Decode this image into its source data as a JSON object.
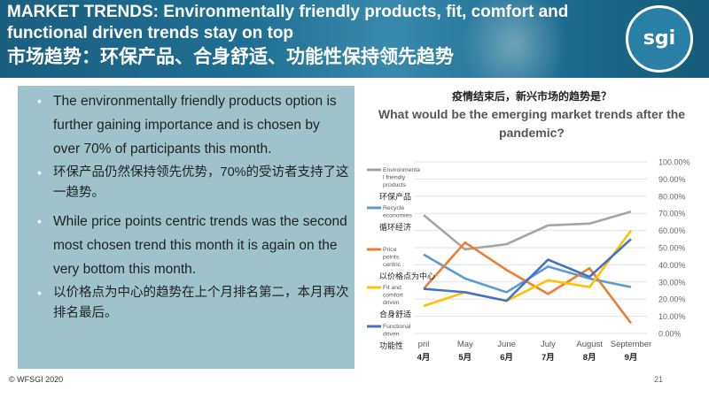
{
  "header": {
    "title_en": "MARKET TRENDS: Environmentally friendly products, fit, comfort and functional driven trends stay on top",
    "title_cn": "市场趋势：环保产品、合身舒适、功能性保持领先趋势",
    "logo_text": "sgi"
  },
  "bullets": [
    {
      "text": "The environmentally friendly products option is further gaining importance and is chosen by over 70% of participants this month.",
      "lang": "en"
    },
    {
      "text": "环保产品仍然保持领先优势，70%的受访者支持了这一趋势。",
      "lang": "cn"
    },
    {
      "text": "While price points centric trends was the second most chosen trend this month it is again on the very bottom this month.",
      "lang": "en"
    },
    {
      "text": "以价格点为中心的趋势在上个月排名第二，本月再次排名最后。",
      "lang": "cn"
    }
  ],
  "footer": {
    "copyright": "© WFSGI 2020",
    "page": "21"
  },
  "chart_data": {
    "type": "line",
    "title_cn": "疫情结束后，新兴市场的趋势是？",
    "title_en": "What would be the emerging market trends after the pandemic?",
    "categories": [
      "April",
      "May",
      "June",
      "July",
      "August",
      "September"
    ],
    "categories_cn": [
      "4月",
      "5月",
      "6月",
      "7月",
      "8月",
      "9月"
    ],
    "category_labels_shown": [
      "pril",
      "May",
      "June",
      "July",
      "August",
      "September"
    ],
    "ylim": [
      0,
      100
    ],
    "yticks": [
      "0.00%",
      "10.00%",
      "20.00%",
      "30.00%",
      "40.00%",
      "50.00%",
      "60.00%",
      "70.00%",
      "80.00%",
      "90.00%",
      "100.00%"
    ],
    "legend_position": "left",
    "series": [
      {
        "name": "Environmenta l friendly products",
        "name_cn": "环保产品",
        "color": "#a5a5a5",
        "values": [
          69,
          49,
          52,
          63,
          64,
          71
        ]
      },
      {
        "name": "Recycle economies",
        "name_cn": "循环经济",
        "color": "#5b9bd5",
        "values": [
          46,
          32,
          24,
          39,
          32,
          27
        ]
      },
      {
        "name": "Price points centric",
        "name_cn": "以价格点为中心",
        "color": "#ed7d31",
        "values": [
          26,
          53,
          37,
          23,
          38,
          6
        ]
      },
      {
        "name": "Fit and comfort driven",
        "name_cn": "合身舒适",
        "color": "#ffc000",
        "values": [
          16,
          24,
          19,
          31,
          27,
          60
        ]
      },
      {
        "name": "Functional driven",
        "name_cn": "功能性",
        "color": "#4472c4",
        "values": [
          26,
          24,
          19,
          43,
          33,
          55
        ]
      }
    ]
  }
}
